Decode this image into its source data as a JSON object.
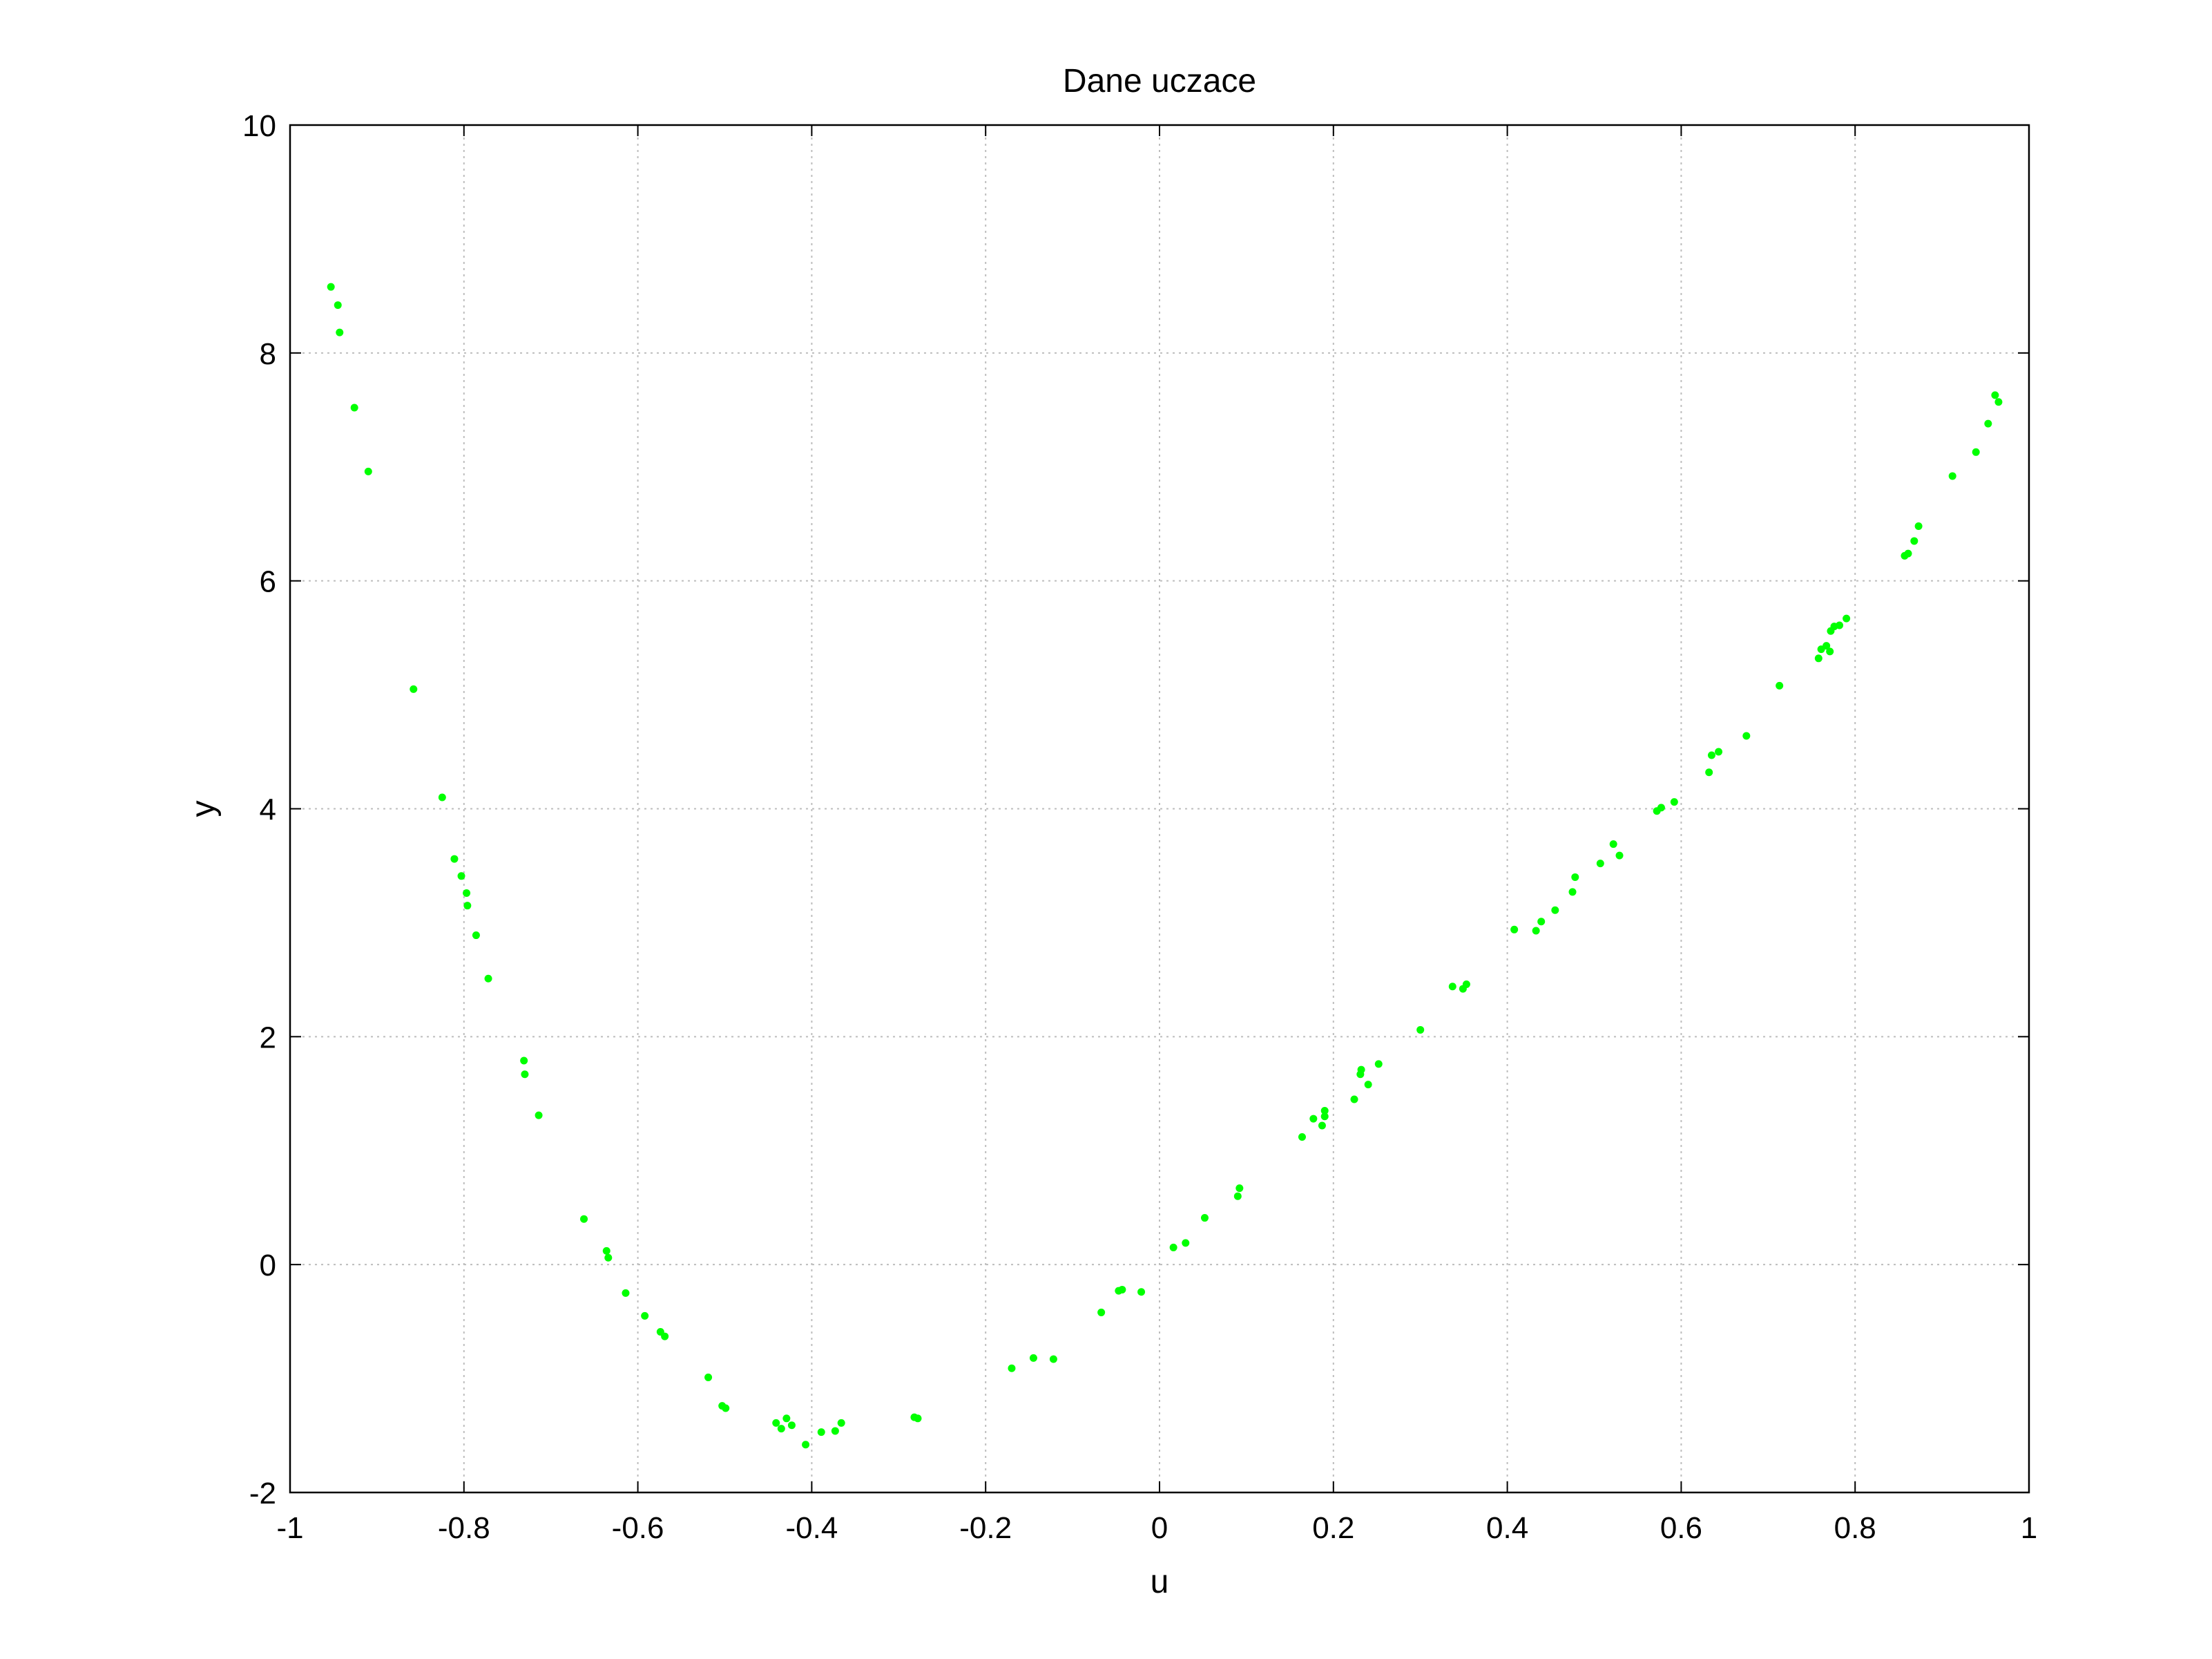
{
  "chart_data": {
    "type": "scatter",
    "title": "Dane uczace",
    "xlabel": "u",
    "ylabel": "y",
    "xlim": [
      -1,
      1
    ],
    "ylim": [
      -2,
      10
    ],
    "xticks": [
      -1,
      -0.8,
      -0.6,
      -0.4,
      -0.2,
      0,
      0.2,
      0.4,
      0.6,
      0.8,
      1
    ],
    "xtick_labels": [
      "-1",
      "-0.8",
      "-0.6",
      "-0.4",
      "-0.2",
      "0",
      "0.2",
      "0.4",
      "0.6",
      "0.8",
      "1"
    ],
    "yticks": [
      -2,
      0,
      2,
      4,
      6,
      8,
      10
    ],
    "ytick_labels": [
      "-2",
      "0",
      "2",
      "4",
      "6",
      "8",
      "10"
    ],
    "grid": true,
    "marker_color": "#00ff00",
    "series": [
      {
        "points": [
          [
            -0.953,
            8.58
          ],
          [
            -0.945,
            8.42
          ],
          [
            -0.943,
            8.18
          ],
          [
            -0.926,
            7.52
          ],
          [
            -0.91,
            6.96
          ],
          [
            -0.858,
            5.05
          ],
          [
            -0.825,
            4.1
          ],
          [
            -0.811,
            3.56
          ],
          [
            -0.803,
            3.41
          ],
          [
            -0.797,
            3.26
          ],
          [
            -0.796,
            3.15
          ],
          [
            -0.786,
            2.89
          ],
          [
            -0.772,
            2.51
          ],
          [
            -0.731,
            1.79
          ],
          [
            -0.73,
            1.67
          ],
          [
            -0.714,
            1.31
          ],
          [
            -0.662,
            0.4
          ],
          [
            -0.636,
            0.12
          ],
          [
            -0.634,
            0.06
          ],
          [
            -0.614,
            -0.25
          ],
          [
            -0.592,
            -0.45
          ],
          [
            -0.574,
            -0.59
          ],
          [
            -0.569,
            -0.63
          ],
          [
            -0.519,
            -0.99
          ],
          [
            -0.503,
            -1.24
          ],
          [
            -0.499,
            -1.26
          ],
          [
            -0.441,
            -1.39
          ],
          [
            -0.435,
            -1.44
          ],
          [
            -0.429,
            -1.35
          ],
          [
            -0.423,
            -1.41
          ],
          [
            -0.407,
            -1.58
          ],
          [
            -0.389,
            -1.47
          ],
          [
            -0.373,
            -1.46
          ],
          [
            -0.366,
            -1.39
          ],
          [
            -0.282,
            -1.34
          ],
          [
            -0.278,
            -1.35
          ],
          [
            -0.17,
            -0.91
          ],
          [
            -0.145,
            -0.82
          ],
          [
            -0.122,
            -0.83
          ],
          [
            -0.067,
            -0.42
          ],
          [
            -0.047,
            -0.23
          ],
          [
            -0.043,
            -0.22
          ],
          [
            -0.021,
            -0.24
          ],
          [
            0.016,
            0.15
          ],
          [
            0.03,
            0.19
          ],
          [
            0.052,
            0.41
          ],
          [
            0.09,
            0.6
          ],
          [
            0.092,
            0.67
          ],
          [
            0.164,
            1.12
          ],
          [
            0.177,
            1.28
          ],
          [
            0.187,
            1.22
          ],
          [
            0.19,
            1.3
          ],
          [
            0.19,
            1.35
          ],
          [
            0.224,
            1.45
          ],
          [
            0.231,
            1.67
          ],
          [
            0.232,
            1.71
          ],
          [
            0.24,
            1.58
          ],
          [
            0.252,
            1.76
          ],
          [
            0.3,
            2.06
          ],
          [
            0.337,
            2.44
          ],
          [
            0.349,
            2.42
          ],
          [
            0.353,
            2.46
          ],
          [
            0.408,
            2.94
          ],
          [
            0.433,
            2.93
          ],
          [
            0.439,
            3.01
          ],
          [
            0.455,
            3.11
          ],
          [
            0.475,
            3.27
          ],
          [
            0.478,
            3.4
          ],
          [
            0.507,
            3.52
          ],
          [
            0.522,
            3.69
          ],
          [
            0.529,
            3.59
          ],
          [
            0.572,
            3.98
          ],
          [
            0.577,
            4.01
          ],
          [
            0.592,
            4.06
          ],
          [
            0.632,
            4.32
          ],
          [
            0.635,
            4.47
          ],
          [
            0.643,
            4.5
          ],
          [
            0.675,
            4.64
          ],
          [
            0.713,
            5.08
          ],
          [
            0.758,
            5.32
          ],
          [
            0.761,
            5.4
          ],
          [
            0.767,
            5.43
          ],
          [
            0.771,
            5.38
          ],
          [
            0.772,
            5.56
          ],
          [
            0.776,
            5.6
          ],
          [
            0.782,
            5.61
          ],
          [
            0.79,
            5.67
          ],
          [
            0.857,
            6.22
          ],
          [
            0.861,
            6.24
          ],
          [
            0.868,
            6.35
          ],
          [
            0.873,
            6.48
          ],
          [
            0.912,
            6.92
          ],
          [
            0.939,
            7.13
          ],
          [
            0.953,
            7.38
          ],
          [
            0.961,
            7.63
          ],
          [
            0.965,
            7.57
          ]
        ]
      }
    ]
  }
}
